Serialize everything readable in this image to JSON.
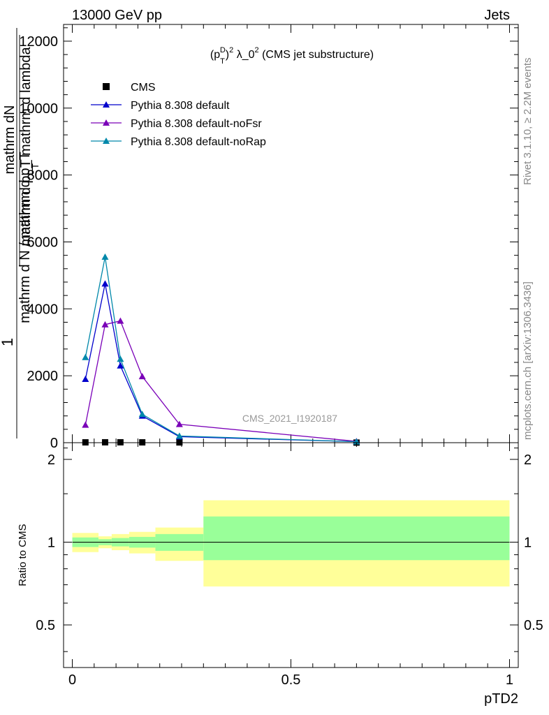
{
  "header": {
    "energy_label": "13000 GeV pp",
    "process_label": "Jets"
  },
  "side_labels": {
    "rivet": "Rivet 3.1.10, ≥ 2.2M events",
    "mcplots": "mcplots.cern.ch [arXiv:1306.3436]"
  },
  "chart_data": [
    {
      "type": "line",
      "title": "(p_T^D)^2 λ_0^2 (CMS jet substructure)",
      "watermark": "CMS_2021_I1920187",
      "ylabel_top": "mathrm dN",
      "ylabel_bottom": "mathrm d p_T mathrm d lambda",
      "ylabel_frac_num": "1",
      "ylabel_frac_den": "mathrm d N / mathrm d p_T",
      "ylabel_sub": "T",
      "ylim": [
        0,
        12500
      ],
      "yticks": [
        0,
        2000,
        4000,
        6000,
        8000,
        10000,
        12000
      ],
      "ytick_labels": [
        "0",
        "2000",
        "4000",
        "6000",
        "8000",
        "10000",
        "12000"
      ],
      "xlim": [
        -0.02,
        1.02
      ],
      "legend_position": "top-left",
      "x": [
        0.03,
        0.075,
        0.11,
        0.16,
        0.245,
        0.65
      ],
      "series": [
        {
          "name": "CMS",
          "color": "#000000",
          "marker": "square",
          "values": [
            10,
            12,
            12,
            10,
            8,
            3
          ]
        },
        {
          "name": "Pythia 8.308 default",
          "color": "#0000cc",
          "marker": "triangle",
          "values": [
            1900,
            4750,
            2300,
            800,
            180,
            30
          ]
        },
        {
          "name": "Pythia 8.308 default-noFsr",
          "color": "#7a00b8",
          "marker": "triangle",
          "values": [
            530,
            3530,
            3640,
            1980,
            550,
            40
          ]
        },
        {
          "name": "Pythia 8.308 default-noRap",
          "color": "#0088aa",
          "marker": "triangle",
          "values": [
            2550,
            5550,
            2500,
            850,
            200,
            30
          ]
        }
      ]
    },
    {
      "type": "area",
      "ylabel": "Ratio to CMS",
      "xlabel": "pTD2",
      "ylim": [
        0.35,
        2.3
      ],
      "yticks": [
        0.5,
        1,
        2
      ],
      "ytick_labels": [
        "0.5",
        "1",
        "2"
      ],
      "xlim": [
        -0.02,
        1.02
      ],
      "xticks": [
        0,
        0.5,
        1
      ],
      "xtick_labels": [
        "0",
        "0.5",
        "1"
      ],
      "bins": [
        {
          "x0": 0.0,
          "x1": 0.06,
          "inner": [
            0.96,
            1.04
          ],
          "outer": [
            0.92,
            1.08
          ]
        },
        {
          "x0": 0.06,
          "x1": 0.09,
          "inner": [
            0.975,
            1.025
          ],
          "outer": [
            0.95,
            1.05
          ]
        },
        {
          "x0": 0.09,
          "x1": 0.13,
          "inner": [
            0.965,
            1.035
          ],
          "outer": [
            0.935,
            1.07
          ]
        },
        {
          "x0": 0.13,
          "x1": 0.19,
          "inner": [
            0.955,
            1.045
          ],
          "outer": [
            0.91,
            1.09
          ]
        },
        {
          "x0": 0.19,
          "x1": 0.3,
          "inner": [
            0.93,
            1.07
          ],
          "outer": [
            0.855,
            1.13
          ]
        },
        {
          "x0": 0.3,
          "x1": 1.0,
          "inner": [
            0.86,
            1.24
          ],
          "outer": [
            0.69,
            1.42
          ]
        }
      ],
      "inner_color": "#99ff99",
      "outer_color": "#ffff99"
    }
  ]
}
